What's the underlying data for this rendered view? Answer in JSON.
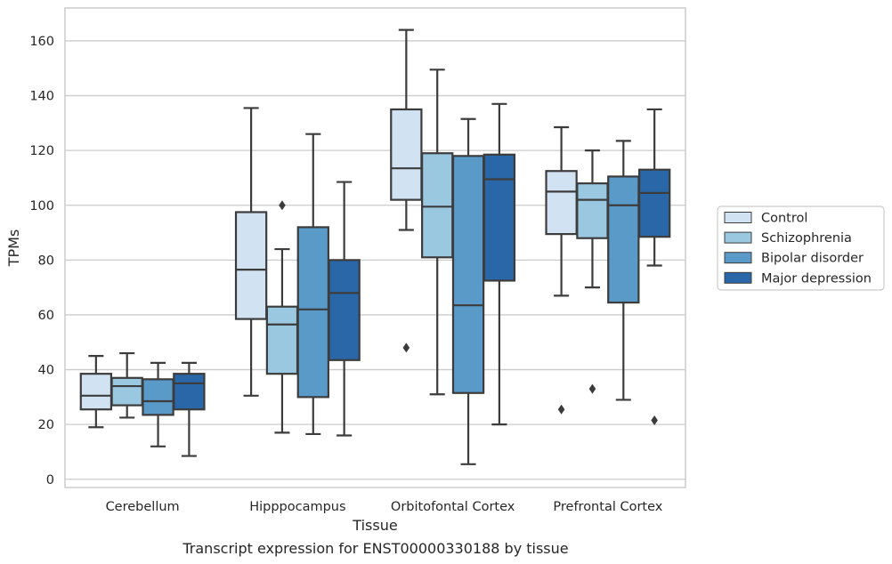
{
  "caption": "Transcript expression for ENST00000330188 by tissue",
  "chart_data": {
    "type": "box",
    "title": "",
    "xlabel": "Tissue",
    "ylabel": "TPMs",
    "ylim": [
      -3,
      172
    ],
    "yticks": [
      0,
      20,
      40,
      60,
      80,
      100,
      120,
      140,
      160
    ],
    "grid": "horizontal",
    "legend_position": "right",
    "categories": [
      "Cerebellum",
      "Hipppocampus",
      "Orbitofontal Cortex",
      "Prefrontal Cortex"
    ],
    "series": [
      {
        "name": "Control",
        "color": "#d1e2f2",
        "boxes": [
          {
            "whislo": 19,
            "q1": 25.5,
            "median": 30.5,
            "q3": 38.5,
            "whishi": 45,
            "fliers": []
          },
          {
            "whislo": 30.5,
            "q1": 58.5,
            "median": 76.5,
            "q3": 97.5,
            "whishi": 135.5,
            "fliers": []
          },
          {
            "whislo": 91,
            "q1": 102,
            "median": 113.5,
            "q3": 135,
            "whishi": 164,
            "fliers": [
              48
            ]
          },
          {
            "whislo": 67,
            "q1": 89.5,
            "median": 105,
            "q3": 112.5,
            "whishi": 128.5,
            "fliers": [
              25.5
            ]
          }
        ]
      },
      {
        "name": "Schizophrenia",
        "color": "#9ac8e0",
        "boxes": [
          {
            "whislo": 22.5,
            "q1": 27,
            "median": 34,
            "q3": 37,
            "whishi": 46,
            "fliers": []
          },
          {
            "whislo": 17,
            "q1": 38.5,
            "median": 56.5,
            "q3": 63,
            "whishi": 84,
            "fliers": [
              100
            ]
          },
          {
            "whislo": 31,
            "q1": 81,
            "median": 99.5,
            "q3": 119,
            "whishi": 149.5,
            "fliers": []
          },
          {
            "whislo": 70,
            "q1": 88,
            "median": 102,
            "q3": 108,
            "whishi": 120,
            "fliers": [
              33
            ]
          }
        ]
      },
      {
        "name": "Bipolar disorder",
        "color": "#5a9ac8",
        "boxes": [
          {
            "whislo": 12,
            "q1": 23.5,
            "median": 28.5,
            "q3": 36.5,
            "whishi": 42.5,
            "fliers": []
          },
          {
            "whislo": 16.5,
            "q1": 30,
            "median": 62,
            "q3": 92,
            "whishi": 126,
            "fliers": []
          },
          {
            "whislo": 5.5,
            "q1": 31.5,
            "median": 63.5,
            "q3": 118,
            "whishi": 131.5,
            "fliers": []
          },
          {
            "whislo": 29,
            "q1": 64.5,
            "median": 100,
            "q3": 110.5,
            "whishi": 123.5,
            "fliers": []
          }
        ]
      },
      {
        "name": "Major depression",
        "color": "#2a67a8",
        "boxes": [
          {
            "whislo": 8.5,
            "q1": 25.5,
            "median": 35,
            "q3": 38.5,
            "whishi": 42.5,
            "fliers": []
          },
          {
            "whislo": 16,
            "q1": 43.5,
            "median": 68,
            "q3": 80,
            "whishi": 108.5,
            "fliers": []
          },
          {
            "whislo": 20,
            "q1": 72.5,
            "median": 109.5,
            "q3": 118.5,
            "whishi": 137,
            "fliers": []
          },
          {
            "whislo": 78,
            "q1": 88.5,
            "median": 104.5,
            "q3": 113,
            "whishi": 135,
            "fliers": [
              21.5
            ]
          }
        ]
      }
    ]
  }
}
